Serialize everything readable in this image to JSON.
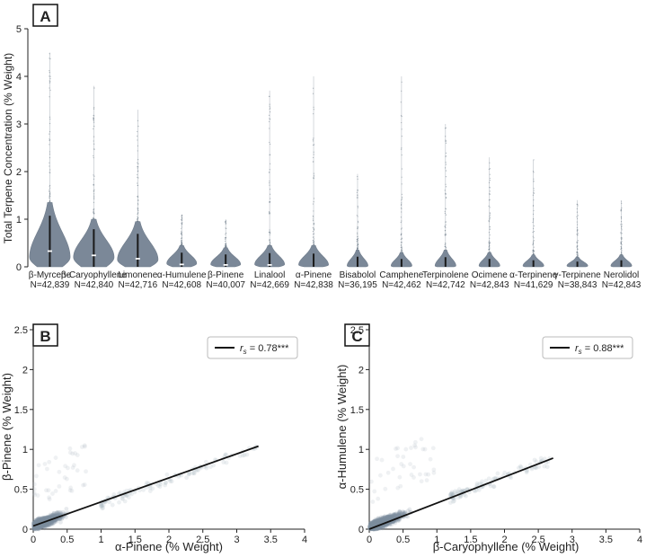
{
  "panels": {
    "a": {
      "letter": "A"
    },
    "b": {
      "letter": "B"
    },
    "c": {
      "letter": "C"
    }
  },
  "chart_data": [
    {
      "type": "violin",
      "panel": "A",
      "ylabel": "Total Terpene Concentration (% Weight)",
      "ylim": [
        0,
        5
      ],
      "yticks": [
        0,
        1,
        2,
        3,
        4,
        5
      ],
      "categories": [
        "β-Myrcene",
        "β-Caryophyllene",
        "Limonene",
        "α-Humulene",
        "β-Pinene",
        "Linalool",
        "α-Pinene",
        "Bisabolol",
        "Camphene",
        "Terpinolene",
        "Ocimene",
        "α-Terpinene",
        "γ-Terpinene",
        "Nerolidol"
      ],
      "n_labels": [
        "N=42,839",
        "N=42,840",
        "N=42,716",
        "N=42,608",
        "N=40,007",
        "N=42,669",
        "N=42,838",
        "N=36,195",
        "N=42,462",
        "N=42,742",
        "N=42,843",
        "N=41,629",
        "N=38,843",
        "N=42,843"
      ],
      "medians": [
        0.33,
        0.24,
        0.17,
        0.05,
        0.04,
        0.04,
        0.03,
        0.02,
        0.0,
        0.01,
        0.0,
        0.0,
        0.0,
        0.0
      ],
      "max_values": [
        4.5,
        3.8,
        3.3,
        1.1,
        1.0,
        3.7,
        4.0,
        1.95,
        4.0,
        3.0,
        2.3,
        2.25,
        1.4,
        1.38
      ],
      "body_peak": [
        0.2,
        0.2,
        0.15,
        0.07,
        0.05,
        0.05,
        0.04,
        0.02,
        0.02,
        0.02,
        0.02,
        0.02,
        0.02,
        0.02
      ],
      "body_top": [
        1.35,
        1.0,
        0.95,
        0.45,
        0.4,
        0.45,
        0.45,
        0.35,
        0.3,
        0.35,
        0.3,
        0.25,
        0.2,
        0.25
      ]
    },
    {
      "type": "scatter",
      "panel": "B",
      "xlabel": "α-Pinene (% Weight)",
      "ylabel": "β-Pinene (% Weight)",
      "xlim": [
        0,
        4.0
      ],
      "ylim": [
        0,
        2.5
      ],
      "xticks": [
        0.0,
        0.5,
        1.0,
        1.5,
        2.0,
        2.5,
        3.0,
        3.5,
        4.0
      ],
      "yticks": [
        0.0,
        0.5,
        1.0,
        1.5,
        2.0,
        2.5
      ],
      "legend": {
        "symbol": "r",
        "subscript": "s",
        "text": " = 0.78***",
        "position": "top-right"
      },
      "fit_line": {
        "x": [
          0.0,
          3.32
        ],
        "y": [
          0.04,
          1.04
        ]
      },
      "point_cloud": {
        "slope": 0.3,
        "intercept": 0.02,
        "x_main_max": 1.0,
        "x_tail_max": 3.3
      }
    },
    {
      "type": "scatter",
      "panel": "C",
      "xlabel": "β-Caryophyllene (% Weight)",
      "ylabel": "α-Humulene (% Weight)",
      "xlim": [
        0,
        4.0
      ],
      "ylim": [
        0,
        2.5
      ],
      "xticks": [
        0.0,
        0.5,
        1.0,
        1.5,
        2.0,
        2.5,
        3.0,
        3.5,
        4.0
      ],
      "yticks": [
        0.0,
        0.5,
        1.0,
        1.5,
        2.0,
        2.5
      ],
      "legend": {
        "symbol": "r",
        "subscript": "s",
        "text": " = 0.88***",
        "position": "top-right"
      },
      "fit_line": {
        "x": [
          0.0,
          2.72
        ],
        "y": [
          0.0,
          0.89
        ]
      },
      "point_cloud": {
        "slope": 0.33,
        "intercept": 0.0,
        "x_main_max": 1.2,
        "x_tail_max": 2.7
      }
    }
  ]
}
